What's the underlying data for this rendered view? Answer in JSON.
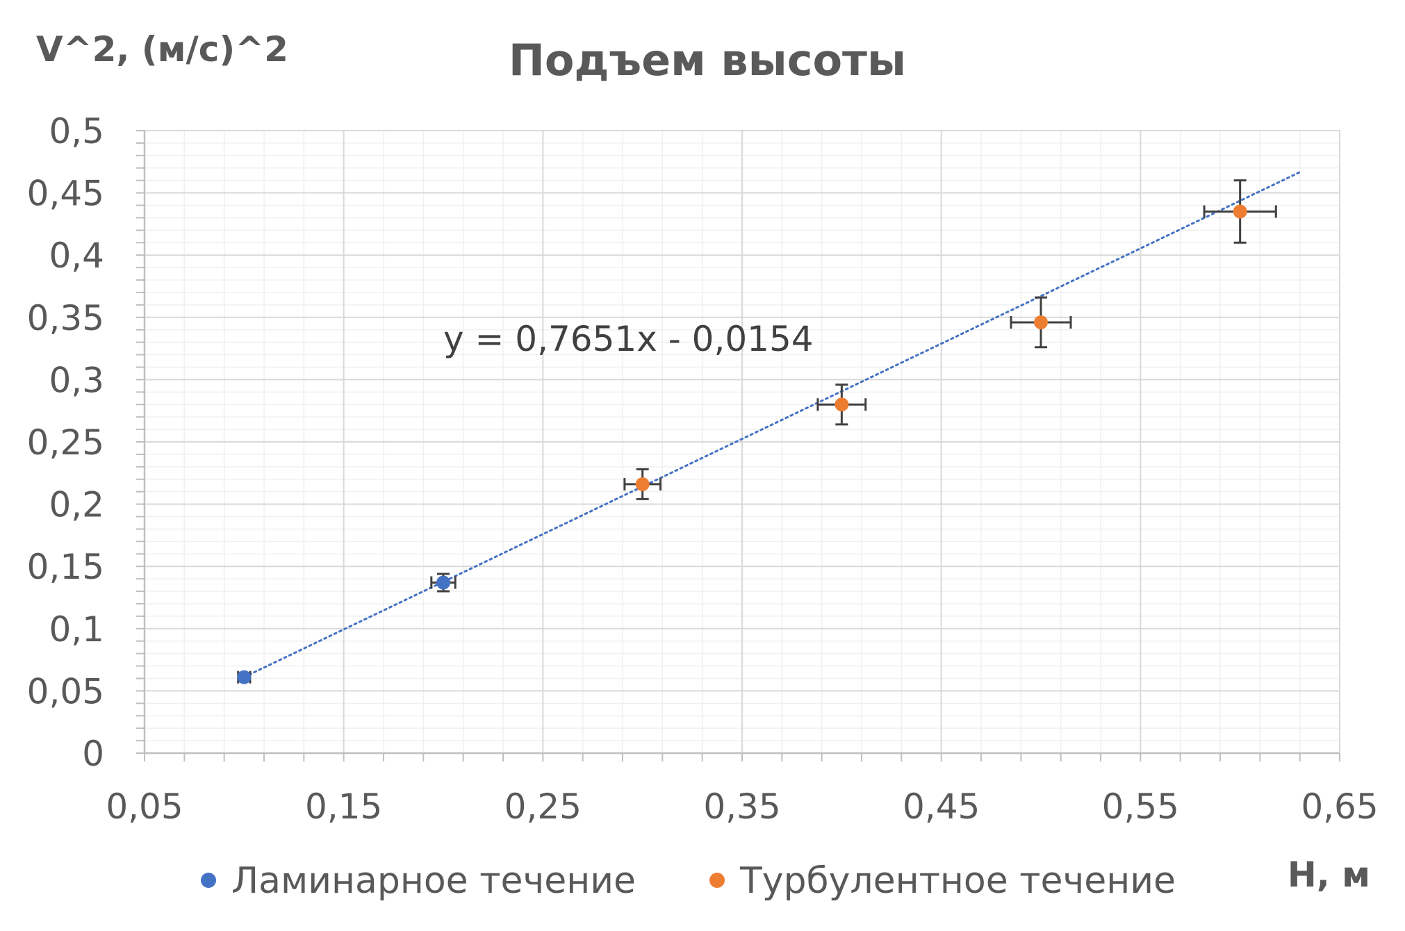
{
  "chart_data": {
    "type": "scatter",
    "title": "Подъем высоты",
    "xlabel": "H, м",
    "ylabel": "V^2, (м/с)^2",
    "xlim": [
      0.05,
      0.65
    ],
    "ylim": [
      0,
      0.5
    ],
    "x_ticks": [
      "0,05",
      "0,15",
      "0,25",
      "0,35",
      "0,45",
      "0,55",
      "0,65"
    ],
    "y_ticks": [
      "0",
      "0,05",
      "0,1",
      "0,15",
      "0,2",
      "0,25",
      "0,3",
      "0,35",
      "0,4",
      "0,45",
      "0,5"
    ],
    "grid": true,
    "legend": "bottom",
    "series": [
      {
        "name": "Ламинарное течение",
        "color": "#4472c4",
        "points": [
          {
            "x": 0.1,
            "y": 0.061,
            "xerr": 0.003,
            "yerr": 0.003
          },
          {
            "x": 0.2,
            "y": 0.137,
            "xerr": 0.006,
            "yerr": 0.007
          }
        ]
      },
      {
        "name": "Турбулентное течение",
        "color": "#ed7d31",
        "points": [
          {
            "x": 0.3,
            "y": 0.216,
            "xerr": 0.009,
            "yerr": 0.012
          },
          {
            "x": 0.4,
            "y": 0.28,
            "xerr": 0.012,
            "yerr": 0.016
          },
          {
            "x": 0.5,
            "y": 0.346,
            "xerr": 0.015,
            "yerr": 0.02
          },
          {
            "x": 0.6,
            "y": 0.435,
            "xerr": 0.018,
            "yerr": 0.025
          }
        ]
      }
    ],
    "trendline": {
      "equation": "y = 0,7651x - 0,0154",
      "slope": 0.7651,
      "intercept": -0.0154,
      "x_range": [
        0.1,
        0.63
      ],
      "color": "#4472c4",
      "style": "dotted"
    }
  }
}
